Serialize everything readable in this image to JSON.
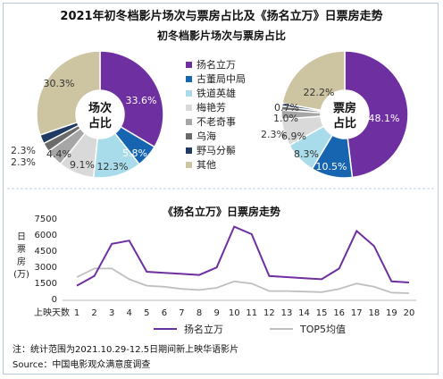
{
  "title": "2021年初冬档影片场次与票房占比及《扬名立万》日票房走势",
  "subtitle": "初冬档影片场次与票房占比",
  "colors": {
    "purple": "#6e2fa0",
    "blue": "#1765b0",
    "lightblue": "#a8dcea",
    "lightgray": "#d9d9d9",
    "midgray": "#a6a6a6",
    "darkgray": "#6b6b6b",
    "navy": "#1f3b63",
    "tan": "#cdc4a2",
    "top5": "#bfbfbf",
    "divider": "#bcd0e4"
  },
  "chart_data": [
    {
      "type": "pie",
      "variant": "donut",
      "center_label": [
        "场次",
        "占比"
      ],
      "categories": [
        "扬名立万",
        "古董局中局",
        "铁道英雄",
        "梅艳芳",
        "不老奇事",
        "乌海",
        "野马分鬃",
        "其他"
      ],
      "values": [
        33.6,
        5.8,
        12.3,
        9.1,
        4.4,
        2.3,
        2.3,
        30.3
      ],
      "labels": [
        "33.6%",
        "5.8%",
        "12.3%",
        "9.1%",
        "4.4%",
        "2.3%",
        "2.3%",
        "30.3%"
      ]
    },
    {
      "type": "pie",
      "variant": "donut",
      "center_label": [
        "票房",
        "占比"
      ],
      "categories": [
        "扬名立万",
        "古董局中局",
        "铁道英雄",
        "梅艳芳",
        "不老奇事",
        "乌海",
        "野马分鬃",
        "其他"
      ],
      "values": [
        48.1,
        10.5,
        8.3,
        6.9,
        2.3,
        1.0,
        0.7,
        22.2
      ],
      "labels": [
        "48.1%",
        "10.5%",
        "8.3%",
        "6.9%",
        "2.3%",
        "1.0%",
        "0.7%",
        "22.2%"
      ]
    },
    {
      "type": "line",
      "title": "《扬名立万》日票房走势",
      "xlabel": "上映天数",
      "ylabel": [
        "日",
        "票",
        "房",
        "(万)"
      ],
      "x": [
        1,
        2,
        3,
        4,
        5,
        6,
        7,
        8,
        9,
        10,
        11,
        12,
        13,
        14,
        15,
        16,
        17,
        18,
        19,
        20
      ],
      "ylim": [
        0,
        7500
      ],
      "yticks": [
        0,
        1500,
        3000,
        4500,
        6000,
        7500
      ],
      "series": [
        {
          "name": "扬名立万",
          "values": [
            1200,
            2100,
            5100,
            5400,
            2500,
            2400,
            2300,
            2200,
            2900,
            6700,
            6000,
            2100,
            2000,
            1900,
            1800,
            2800,
            6300,
            4900,
            1600,
            1500
          ]
        },
        {
          "name": "TOP5均值",
          "values": [
            2000,
            2800,
            2800,
            1800,
            1200,
            1100,
            900,
            800,
            1000,
            1600,
            1400,
            700,
            700,
            650,
            600,
            900,
            1400,
            1100,
            550,
            500
          ]
        }
      ]
    }
  ],
  "legend": [
    "扬名立万",
    "古董局中局",
    "铁道英雄",
    "梅艳芳",
    "不老奇事",
    "乌海",
    "野马分鬃",
    "其他"
  ],
  "footnote": "注：统计范围为2021.10.29-12.5日期间新上映华语影片",
  "source": "Source：中国电影观众满意度调查"
}
